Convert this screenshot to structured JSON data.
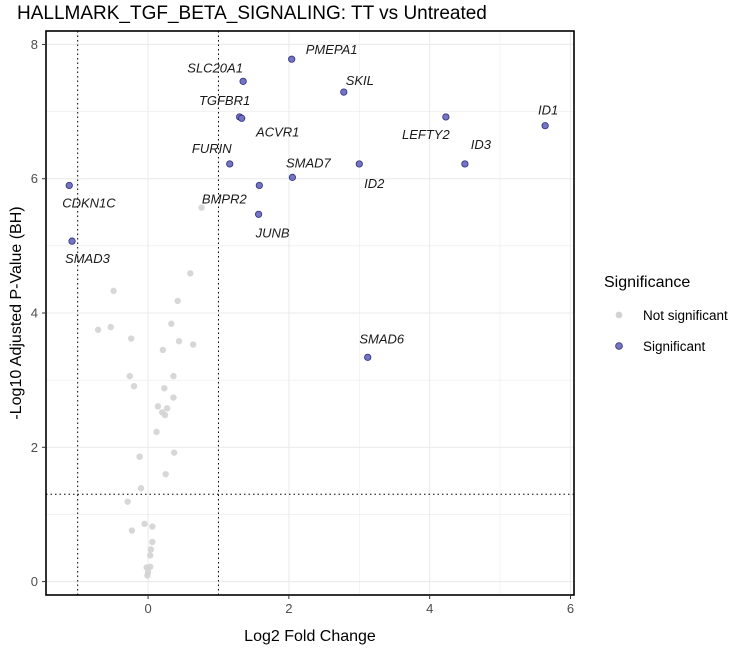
{
  "chart_data": {
    "type": "scatter",
    "title": "HALLMARK_TGF_BETA_SIGNALING: TT vs Untreated",
    "xlabel": "Log2 Fold Change",
    "ylabel": "-Log10 Adjusted P-Value (BH)",
    "xlim": [
      -1.45,
      6.05
    ],
    "ylim": [
      -0.2,
      8.2
    ],
    "xticks": [
      0,
      2,
      4,
      6
    ],
    "yticks": [
      0,
      2,
      4,
      6,
      8
    ],
    "grid": true,
    "fc_thresholds": [
      -1,
      1
    ],
    "pvalue_threshold": 1.3,
    "legend": {
      "title": "Significance",
      "position": "right",
      "entries": [
        {
          "label": "Not significant",
          "color": "#d3d3d3"
        },
        {
          "label": "Significant",
          "color": "#7474c2"
        }
      ]
    },
    "significant": [
      {
        "gene": "PMEPA1",
        "x": 2.04,
        "y": 7.78
      },
      {
        "gene": "SLC20A1",
        "x": 1.35,
        "y": 7.45
      },
      {
        "gene": "SKIL",
        "x": 2.78,
        "y": 7.29
      },
      {
        "gene": "TGFBR1",
        "x": 1.3,
        "y": 6.92
      },
      {
        "gene": "ACVR1",
        "x": 1.33,
        "y": 6.9
      },
      {
        "gene": "LEFTY2",
        "x": 4.23,
        "y": 6.92
      },
      {
        "gene": "ID1",
        "x": 5.64,
        "y": 6.79
      },
      {
        "gene": "FURIN",
        "x": 1.16,
        "y": 6.22
      },
      {
        "gene": "ID2",
        "x": 3.0,
        "y": 6.22
      },
      {
        "gene": "ID3",
        "x": 4.5,
        "y": 6.22
      },
      {
        "gene": "SMAD7",
        "x": 2.05,
        "y": 6.02
      },
      {
        "gene": "BMPR2",
        "x": 1.58,
        "y": 5.9
      },
      {
        "gene": "CDKN1C",
        "x": -1.12,
        "y": 5.9
      },
      {
        "gene": "JUNB",
        "x": 1.57,
        "y": 5.47
      },
      {
        "gene": "SMAD3",
        "x": -1.08,
        "y": 5.07
      },
      {
        "gene": "SMAD6",
        "x": 3.12,
        "y": 3.34
      }
    ],
    "not_significant": [
      {
        "x": 0.76,
        "y": 5.57
      },
      {
        "x": 0.6,
        "y": 4.59
      },
      {
        "x": -0.49,
        "y": 4.33
      },
      {
        "x": 0.42,
        "y": 4.18
      },
      {
        "x": -0.71,
        "y": 3.75
      },
      {
        "x": -0.53,
        "y": 3.79
      },
      {
        "x": 0.33,
        "y": 3.84
      },
      {
        "x": -0.24,
        "y": 3.62
      },
      {
        "x": 0.44,
        "y": 3.58
      },
      {
        "x": 0.64,
        "y": 3.53
      },
      {
        "x": 0.21,
        "y": 3.45
      },
      {
        "x": -0.26,
        "y": 3.06
      },
      {
        "x": 0.36,
        "y": 3.06
      },
      {
        "x": -0.2,
        "y": 2.91
      },
      {
        "x": 0.23,
        "y": 2.88
      },
      {
        "x": 0.36,
        "y": 2.74
      },
      {
        "x": 0.14,
        "y": 2.61
      },
      {
        "x": 0.27,
        "y": 2.58
      },
      {
        "x": 0.2,
        "y": 2.52
      },
      {
        "x": 0.24,
        "y": 2.48
      },
      {
        "x": 0.12,
        "y": 2.23
      },
      {
        "x": 0.37,
        "y": 1.92
      },
      {
        "x": -0.12,
        "y": 1.86
      },
      {
        "x": 0.25,
        "y": 1.6
      },
      {
        "x": -0.1,
        "y": 1.39
      },
      {
        "x": -0.29,
        "y": 1.19
      },
      {
        "x": -0.05,
        "y": 0.86
      },
      {
        "x": 0.06,
        "y": 0.82
      },
      {
        "x": -0.23,
        "y": 0.76
      },
      {
        "x": 0.06,
        "y": 0.59
      },
      {
        "x": 0.04,
        "y": 0.48
      },
      {
        "x": 0.03,
        "y": 0.39
      },
      {
        "x": 0.03,
        "y": 0.22
      },
      {
        "x": -0.02,
        "y": 0.21
      },
      {
        "x": 0.0,
        "y": 0.14
      },
      {
        "x": -0.01,
        "y": 0.09
      }
    ],
    "colors": {
      "significant_fill": "#7474c2",
      "significant_stroke": "#2e2e80",
      "not_significant_fill": "#d3d3d3",
      "grid": "#ebebeb",
      "threshold_line": "#000000"
    }
  }
}
